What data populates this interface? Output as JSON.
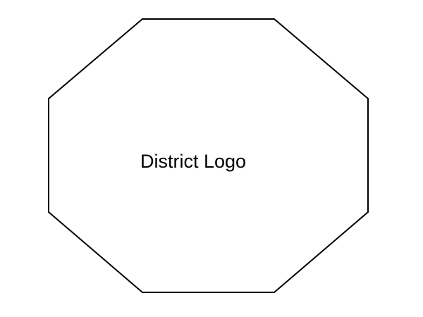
{
  "placeholder": {
    "label": "District Logo",
    "shape": "octagon",
    "stroke_color": "#000000",
    "fill_color": "#ffffff"
  }
}
